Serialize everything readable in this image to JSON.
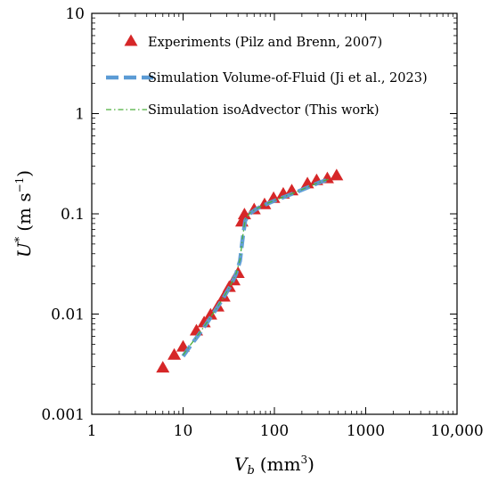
{
  "chart_data": {
    "type": "scatter",
    "xlabel_base": "V",
    "xlabel_sub": "b",
    "xlabel_unit": "(mm",
    "xlabel_unit_sup": "3",
    "xlabel_unit_close": ")",
    "ylabel_base": "U",
    "ylabel_sup_star": "*",
    "ylabel_unit": "(m s",
    "ylabel_unit_sup": "−1",
    "ylabel_unit_close": ")",
    "xscale": "log",
    "yscale": "log",
    "xlim": [
      1,
      10000
    ],
    "ylim": [
      0.001,
      10
    ],
    "xticks": [
      {
        "value": 1,
        "label": "1"
      },
      {
        "value": 10,
        "label": "10"
      },
      {
        "value": 100,
        "label": "100"
      },
      {
        "value": 1000,
        "label": "1000"
      },
      {
        "value": 10000,
        "label": "10,000"
      }
    ],
    "yticks": [
      {
        "value": 0.001,
        "label": "0.001"
      },
      {
        "value": 0.01,
        "label": "0.01"
      },
      {
        "value": 0.1,
        "label": "0.1"
      },
      {
        "value": 1,
        "label": "1"
      },
      {
        "value": 10,
        "label": "10"
      }
    ],
    "grid": false,
    "legend_position": "top-left",
    "series": [
      {
        "name": "Experiments (Pilz and Brenn, 2007)",
        "kind": "markers",
        "color": "#d62728",
        "x": [
          6,
          8,
          10,
          14,
          17,
          20,
          24,
          28,
          32,
          36,
          40,
          44,
          47,
          60,
          78,
          98,
          125,
          155,
          230,
          290,
          380,
          480
        ],
        "y": [
          0.0029,
          0.0039,
          0.0047,
          0.0068,
          0.0082,
          0.0098,
          0.0118,
          0.0148,
          0.0185,
          0.0215,
          0.0255,
          0.083,
          0.098,
          0.11,
          0.124,
          0.143,
          0.158,
          0.17,
          0.2,
          0.215,
          0.225,
          0.24
        ]
      },
      {
        "name": "Simulation Volume-of-Fluid (Ji et al., 2023)",
        "kind": "dashed",
        "color": "#5b9bd5",
        "x": [
          10,
          12,
          15,
          18,
          22,
          27,
          33,
          38,
          42,
          45,
          48,
          55,
          65,
          80,
          100,
          130,
          170,
          230,
          300,
          400
        ],
        "y": [
          0.0038,
          0.0048,
          0.0063,
          0.008,
          0.0105,
          0.014,
          0.019,
          0.025,
          0.034,
          0.058,
          0.086,
          0.102,
          0.113,
          0.124,
          0.135,
          0.148,
          0.163,
          0.183,
          0.203,
          0.222
        ]
      },
      {
        "name": "Simulation isoAdvector (This work)",
        "kind": "dashdot",
        "color": "#4caf3c",
        "x": [
          10,
          12,
          15,
          18,
          22,
          27,
          33,
          38,
          42,
          45,
          48,
          55,
          65,
          80,
          100,
          130,
          170,
          230,
          300,
          400
        ],
        "y": [
          0.0039,
          0.0049,
          0.0064,
          0.0081,
          0.0106,
          0.0141,
          0.0192,
          0.0252,
          0.035,
          0.06,
          0.088,
          0.104,
          0.114,
          0.125,
          0.136,
          0.149,
          0.164,
          0.184,
          0.204,
          0.223
        ]
      }
    ]
  }
}
